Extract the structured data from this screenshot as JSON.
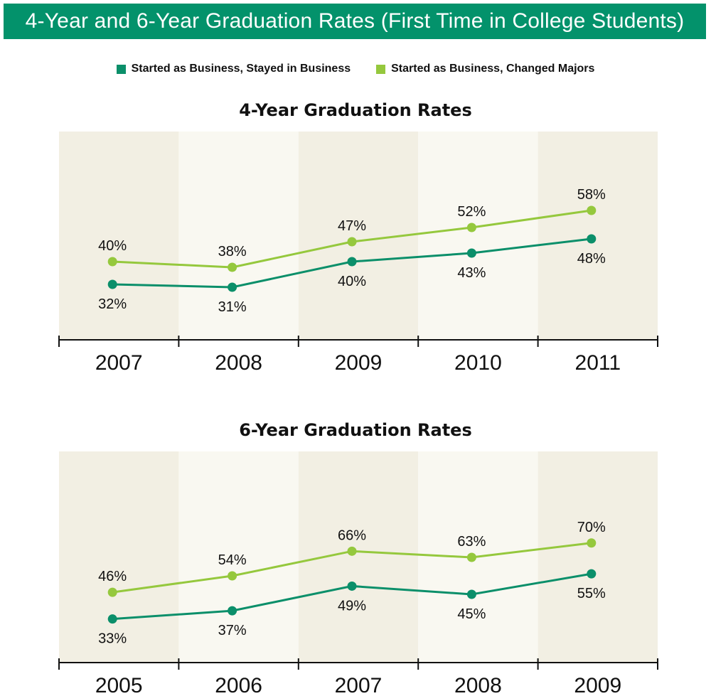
{
  "title": "4-Year and 6-Year Graduation Rates (First Time in College Students)",
  "colors": {
    "banner": "#03926b",
    "stayed": "#0b8f6a",
    "changed": "#95c83d",
    "band_dark": "#f2efe3",
    "band_light": "#f9f8f1",
    "axis": "#111111"
  },
  "legend": [
    {
      "label": "Started as Business, Stayed in Business",
      "color": "#0b8f6a"
    },
    {
      "label": "Started as Business, Changed Majors",
      "color": "#95c83d"
    }
  ],
  "chart_data": [
    {
      "type": "line",
      "title": "4-Year Graduation Rates",
      "categories": [
        "2007",
        "2008",
        "2009",
        "2010",
        "2011"
      ],
      "series": [
        {
          "name": "Started as Business, Stayed in Business",
          "values": [
            32,
            31,
            40,
            43,
            48
          ],
          "labels": [
            "32%",
            "31%",
            "40%",
            "43%",
            "48%"
          ],
          "color": "#0b8f6a"
        },
        {
          "name": "Started as Business, Changed Majors",
          "values": [
            40,
            38,
            47,
            52,
            58
          ],
          "labels": [
            "40%",
            "38%",
            "47%",
            "52%",
            "58%"
          ],
          "color": "#95c83d"
        }
      ],
      "xlabel": "",
      "ylabel": "",
      "ylim": [
        0,
        70
      ],
      "grid": false
    },
    {
      "type": "line",
      "title": "6-Year Graduation Rates",
      "categories": [
        "2005",
        "2006",
        "2007",
        "2008",
        "2009"
      ],
      "series": [
        {
          "name": "Started as Business, Stayed in Business",
          "values": [
            33,
            37,
            49,
            45,
            55
          ],
          "labels": [
            "33%",
            "37%",
            "49%",
            "45%",
            "55%"
          ],
          "color": "#0b8f6a"
        },
        {
          "name": "Started as Business, Changed Majors",
          "values": [
            46,
            54,
            66,
            63,
            70
          ],
          "labels": [
            "46%",
            "54%",
            "66%",
            "63%",
            "70%"
          ],
          "color": "#95c83d"
        }
      ],
      "xlabel": "",
      "ylabel": "",
      "ylim": [
        0,
        90
      ],
      "grid": false
    }
  ]
}
